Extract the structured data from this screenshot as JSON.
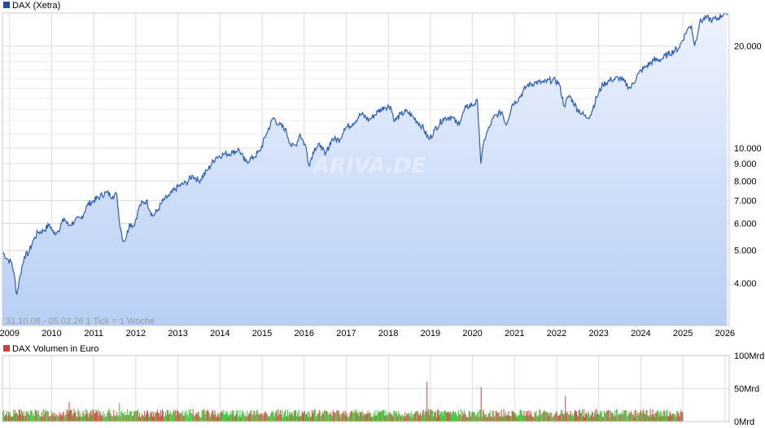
{
  "chart_data": [
    {
      "type": "line",
      "title": "DAX (Xetra)",
      "legend_color": "#1f4fa6",
      "line_color": "#2a5cb8",
      "fill_top": "#eef3fd",
      "fill_bottom": "#b8cff5",
      "y_scale": "log",
      "ylim": [
        3000,
        25000
      ],
      "x_range": [
        "2008-10-31",
        "2026-02-05"
      ],
      "info_text": "31.10.08 - 05.02.26   1 Tick = 1 Woche",
      "watermark": "ARIVA.DE",
      "x_ticks": [
        "2009",
        "2010",
        "2011",
        "2012",
        "2013",
        "2014",
        "2015",
        "2016",
        "2017",
        "2018",
        "2019",
        "2020",
        "2021",
        "2022",
        "2023",
        "2024",
        "2025",
        "2026"
      ],
      "y_ticks": [
        {
          "value": 4000,
          "label": "4.000"
        },
        {
          "value": 5000,
          "label": "5.000"
        },
        {
          "value": 6000,
          "label": "6.000"
        },
        {
          "value": 7000,
          "label": "7.000"
        },
        {
          "value": 8000,
          "label": "8.000"
        },
        {
          "value": 9000,
          "label": "9.000"
        },
        {
          "value": 10000,
          "label": "10.000"
        },
        {
          "value": 20000,
          "label": "20.000"
        }
      ],
      "points": [
        [
          2008.83,
          4950
        ],
        [
          2008.95,
          4700
        ],
        [
          2009.05,
          4600
        ],
        [
          2009.1,
          4300
        ],
        [
          2009.17,
          3700
        ],
        [
          2009.25,
          4200
        ],
        [
          2009.35,
          4800
        ],
        [
          2009.45,
          4900
        ],
        [
          2009.55,
          5300
        ],
        [
          2009.67,
          5650
        ],
        [
          2009.8,
          5700
        ],
        [
          2009.95,
          5950
        ],
        [
          2010.05,
          5600
        ],
        [
          2010.15,
          5700
        ],
        [
          2010.3,
          6200
        ],
        [
          2010.4,
          5900
        ],
        [
          2010.55,
          6100
        ],
        [
          2010.7,
          6200
        ],
        [
          2010.85,
          6800
        ],
        [
          2011.0,
          7000
        ],
        [
          2011.15,
          7200
        ],
        [
          2011.3,
          7400
        ],
        [
          2011.45,
          7200
        ],
        [
          2011.55,
          7300
        ],
        [
          2011.6,
          6200
        ],
        [
          2011.7,
          5300
        ],
        [
          2011.78,
          5500
        ],
        [
          2011.85,
          6000
        ],
        [
          2011.95,
          5900
        ],
        [
          2012.1,
          6800
        ],
        [
          2012.25,
          7000
        ],
        [
          2012.4,
          6300
        ],
        [
          2012.5,
          6500
        ],
        [
          2012.65,
          7000
        ],
        [
          2012.8,
          7250
        ],
        [
          2013.0,
          7700
        ],
        [
          2013.2,
          7900
        ],
        [
          2013.35,
          8300
        ],
        [
          2013.5,
          8000
        ],
        [
          2013.7,
          8600
        ],
        [
          2013.9,
          9400
        ],
        [
          2014.1,
          9600
        ],
        [
          2014.3,
          9700
        ],
        [
          2014.45,
          9900
        ],
        [
          2014.6,
          9100
        ],
        [
          2014.8,
          9400
        ],
        [
          2014.95,
          9800
        ],
        [
          2015.1,
          11000
        ],
        [
          2015.27,
          12300
        ],
        [
          2015.4,
          11700
        ],
        [
          2015.55,
          11400
        ],
        [
          2015.7,
          10100
        ],
        [
          2015.8,
          10200
        ],
        [
          2015.9,
          11000
        ],
        [
          2016.05,
          10000
        ],
        [
          2016.11,
          8900
        ],
        [
          2016.25,
          10000
        ],
        [
          2016.4,
          10200
        ],
        [
          2016.5,
          9500
        ],
        [
          2016.65,
          10600
        ],
        [
          2016.85,
          10600
        ],
        [
          2016.95,
          11400
        ],
        [
          2017.15,
          11800
        ],
        [
          2017.35,
          12600
        ],
        [
          2017.55,
          12100
        ],
        [
          2017.75,
          12800
        ],
        [
          2017.9,
          13200
        ],
        [
          2018.05,
          13300
        ],
        [
          2018.15,
          12000
        ],
        [
          2018.3,
          12600
        ],
        [
          2018.45,
          12800
        ],
        [
          2018.6,
          12300
        ],
        [
          2018.8,
          11600
        ],
        [
          2018.97,
          10600
        ],
        [
          2019.1,
          11300
        ],
        [
          2019.3,
          12200
        ],
        [
          2019.5,
          12400
        ],
        [
          2019.65,
          11700
        ],
        [
          2019.85,
          13200
        ],
        [
          2020.05,
          13500
        ],
        [
          2020.12,
          13700
        ],
        [
          2020.2,
          9000
        ],
        [
          2020.28,
          10600
        ],
        [
          2020.4,
          11500
        ],
        [
          2020.5,
          12300
        ],
        [
          2020.7,
          12800
        ],
        [
          2020.8,
          11700
        ],
        [
          2020.95,
          13500
        ],
        [
          2021.1,
          14000
        ],
        [
          2021.3,
          15300
        ],
        [
          2021.5,
          15600
        ],
        [
          2021.7,
          15600
        ],
        [
          2021.9,
          15900
        ],
        [
          2022.05,
          15600
        ],
        [
          2022.18,
          13300
        ],
        [
          2022.3,
          14300
        ],
        [
          2022.5,
          13000
        ],
        [
          2022.7,
          12300
        ],
        [
          2022.8,
          12500
        ],
        [
          2022.95,
          14100
        ],
        [
          2023.1,
          15400
        ],
        [
          2023.3,
          15900
        ],
        [
          2023.5,
          16100
        ],
        [
          2023.75,
          15000
        ],
        [
          2023.95,
          16600
        ],
        [
          2024.1,
          17300
        ],
        [
          2024.3,
          18100
        ],
        [
          2024.5,
          18300
        ],
        [
          2024.65,
          18900
        ],
        [
          2024.9,
          19700
        ],
        [
          2025.1,
          22300
        ],
        [
          2025.2,
          23000
        ],
        [
          2025.28,
          20000
        ],
        [
          2025.4,
          23500
        ],
        [
          2025.55,
          24200
        ],
        [
          2025.7,
          23800
        ],
        [
          2025.85,
          24200
        ],
        [
          2025.98,
          25000
        ],
        [
          2026.05,
          24600
        ]
      ]
    },
    {
      "type": "bar",
      "title": "DAX Volumen in Euro",
      "legend_color": "#d0413e",
      "up_color": "#44cc44",
      "down_color": "#e05050",
      "ylim": [
        0,
        100
      ],
      "y_ticks": [
        {
          "value": 0,
          "label": "0Mrd"
        },
        {
          "value": 50,
          "label": "50Mrd"
        },
        {
          "value": 100,
          "label": "100Mrd"
        }
      ],
      "x_range": [
        "2008-10-31",
        "2024-12-31"
      ],
      "typical_volume": 14,
      "spikes": [
        {
          "x": 2010.4,
          "value": 30
        },
        {
          "x": 2011.6,
          "value": 28
        },
        {
          "x": 2018.9,
          "value": 60
        },
        {
          "x": 2020.2,
          "value": 52
        },
        {
          "x": 2022.2,
          "value": 38
        }
      ]
    }
  ]
}
